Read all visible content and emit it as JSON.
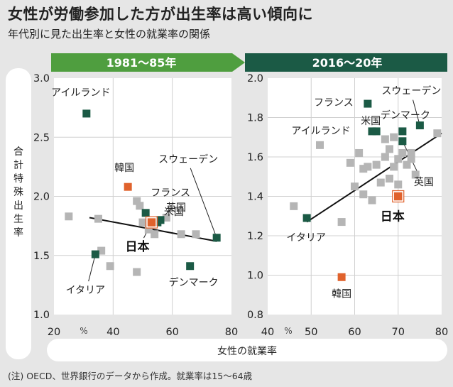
{
  "title": "女性が労働参加した方が出生率は高い傾向に",
  "subtitle": "年代別に見た出生率と女性の就業率の関係",
  "note": "(注) OECD、世界銀行のデータから作成。就業率は15～64歳",
  "colors": {
    "highlight": "#1b5a45",
    "japan": "#e0622c",
    "korea": "#e0622c",
    "other": "#b5b5b5",
    "header_left": "#4f9e3f",
    "header_right": "#1b5a45"
  },
  "chart_data": [
    {
      "type": "scatter",
      "title": "1981～85年",
      "xlabel": "女性の就業率",
      "ylabel": "合計特殊出生率",
      "x_unit": "%",
      "xlim": [
        20,
        80
      ],
      "ylim": [
        1.0,
        3.0
      ],
      "xticks": [
        "20",
        "40",
        "60",
        "80"
      ],
      "yticks": [
        "1.0",
        "1.5",
        "2.0",
        "2.5",
        "3.0"
      ],
      "trend": [
        [
          32,
          1.82
        ],
        [
          75,
          1.62
        ]
      ],
      "highlighted": [
        {
          "name": "アイルランド",
          "x": 31,
          "y": 2.7,
          "kind": "highlight"
        },
        {
          "name": "韓国",
          "x": 45,
          "y": 2.08,
          "kind": "korea"
        },
        {
          "name": "フランス",
          "x": 51,
          "y": 1.86,
          "kind": "highlight"
        },
        {
          "name": "米国",
          "x": 55,
          "y": 1.78,
          "kind": "highlight"
        },
        {
          "name": "英国",
          "x": 56,
          "y": 1.8,
          "kind": "highlight"
        },
        {
          "name": "スウェーデン",
          "x": 75,
          "y": 1.65,
          "kind": "highlight"
        },
        {
          "name": "日本",
          "x": 53,
          "y": 1.78,
          "kind": "japan"
        },
        {
          "name": "イタリア",
          "x": 34,
          "y": 1.51,
          "kind": "highlight"
        },
        {
          "name": "デンマーク",
          "x": 66,
          "y": 1.41,
          "kind": "highlight"
        }
      ],
      "others": [
        {
          "x": 25,
          "y": 1.83
        },
        {
          "x": 35,
          "y": 1.81
        },
        {
          "x": 36,
          "y": 1.54
        },
        {
          "x": 39,
          "y": 1.41
        },
        {
          "x": 48,
          "y": 1.36
        },
        {
          "x": 48,
          "y": 1.96
        },
        {
          "x": 49,
          "y": 1.92
        },
        {
          "x": 50,
          "y": 1.78
        },
        {
          "x": 52,
          "y": 1.72
        },
        {
          "x": 54,
          "y": 1.68
        },
        {
          "x": 58,
          "y": 1.82
        },
        {
          "x": 63,
          "y": 1.68
        },
        {
          "x": 68,
          "y": 1.68
        }
      ]
    },
    {
      "type": "scatter",
      "title": "2016～20年",
      "xlabel": "女性の就業率",
      "ylabel": "合計特殊出生率",
      "x_unit": "%",
      "xlim": [
        40,
        80
      ],
      "ylim": [
        0.8,
        2.0
      ],
      "xticks": [
        "40",
        "50",
        "60",
        "70",
        "80"
      ],
      "yticks": [
        "0.8",
        "1.0",
        "1.2",
        "1.4",
        "1.6",
        "1.8",
        "2.0"
      ],
      "trend": [
        [
          49,
          1.27
        ],
        [
          80,
          1.72
        ]
      ],
      "highlighted": [
        {
          "name": "フランス",
          "x": 63,
          "y": 1.87,
          "kind": "highlight"
        },
        {
          "name": "スウェーデン",
          "x": 75,
          "y": 1.76,
          "kind": "highlight"
        },
        {
          "name": "デンマーク",
          "x": 71,
          "y": 1.73,
          "kind": "highlight"
        },
        {
          "name": "米国",
          "x": 65,
          "y": 1.73,
          "kind": "highlight"
        },
        {
          "name": "アイルランド",
          "x": 64,
          "y": 1.73,
          "kind": "highlight"
        },
        {
          "name": "英国",
          "x": 71,
          "y": 1.68,
          "kind": "highlight"
        },
        {
          "name": "日本",
          "x": 70,
          "y": 1.4,
          "kind": "japan"
        },
        {
          "name": "イタリア",
          "x": 49,
          "y": 1.29,
          "kind": "highlight"
        },
        {
          "name": "韓国",
          "x": 57,
          "y": 0.99,
          "kind": "korea"
        }
      ],
      "others": [
        {
          "x": 46,
          "y": 1.35
        },
        {
          "x": 52,
          "y": 1.66
        },
        {
          "x": 57,
          "y": 1.27
        },
        {
          "x": 59,
          "y": 1.57
        },
        {
          "x": 60,
          "y": 1.45
        },
        {
          "x": 61,
          "y": 1.62
        },
        {
          "x": 62,
          "y": 1.41
        },
        {
          "x": 62,
          "y": 1.54
        },
        {
          "x": 63,
          "y": 1.55
        },
        {
          "x": 64,
          "y": 1.38
        },
        {
          "x": 65,
          "y": 1.56
        },
        {
          "x": 66,
          "y": 1.47
        },
        {
          "x": 67,
          "y": 1.6
        },
        {
          "x": 67,
          "y": 1.69
        },
        {
          "x": 68,
          "y": 1.49
        },
        {
          "x": 68,
          "y": 1.64
        },
        {
          "x": 69,
          "y": 1.7
        },
        {
          "x": 69,
          "y": 1.55
        },
        {
          "x": 70,
          "y": 1.46
        },
        {
          "x": 70,
          "y": 1.59
        },
        {
          "x": 71,
          "y": 1.62
        },
        {
          "x": 72,
          "y": 1.56
        },
        {
          "x": 73,
          "y": 1.59
        },
        {
          "x": 73,
          "y": 1.62
        },
        {
          "x": 74,
          "y": 1.51
        },
        {
          "x": 79,
          "y": 1.72
        }
      ]
    }
  ]
}
